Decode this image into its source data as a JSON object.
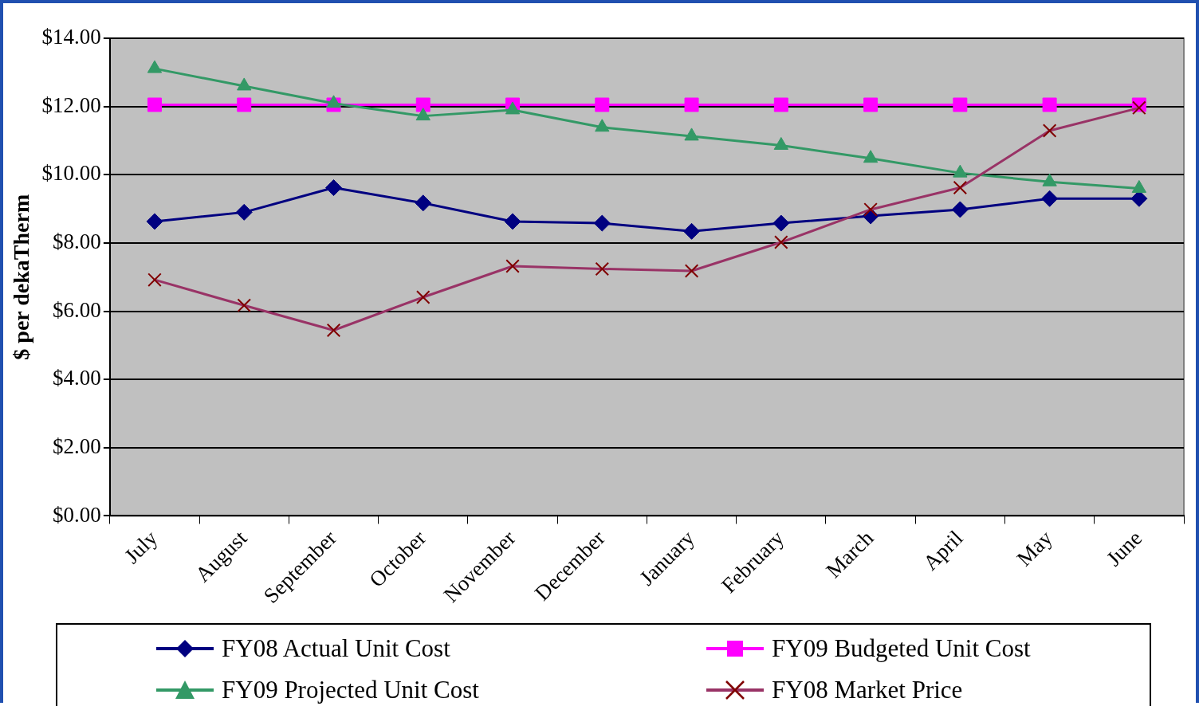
{
  "chart_data": {
    "type": "line",
    "ylabel": "$ per dekaTherm",
    "categories": [
      "July",
      "August",
      "September",
      "October",
      "November",
      "December",
      "January",
      "February",
      "March",
      "April",
      "May",
      "June"
    ],
    "series": [
      {
        "name": "FY08 Actual Unit Cost",
        "color": "#000080",
        "marker": "diamond",
        "values": [
          8.63,
          8.9,
          9.62,
          9.17,
          8.63,
          8.58,
          8.34,
          8.58,
          8.79,
          8.98,
          9.3,
          9.3
        ]
      },
      {
        "name": "FY09 Budgeted Unit Cost",
        "color": "#ff00ff",
        "marker": "square",
        "values": [
          12.05,
          12.05,
          12.05,
          12.05,
          12.05,
          12.05,
          12.05,
          12.05,
          12.05,
          12.05,
          12.05,
          12.05
        ]
      },
      {
        "name": "FY09 Projected Unit Cost",
        "color": "#339966",
        "marker": "triangle",
        "values": [
          13.11,
          12.6,
          12.09,
          11.72,
          11.9,
          11.39,
          11.13,
          10.86,
          10.48,
          10.05,
          9.79,
          9.6
        ]
      },
      {
        "name": "FY08 Market Price",
        "color": "#993366",
        "marker": "cross",
        "values": [
          6.92,
          6.17,
          5.44,
          6.41,
          7.32,
          7.24,
          7.18,
          8.02,
          8.98,
          9.62,
          11.29,
          11.96
        ]
      }
    ],
    "ylim": [
      0,
      14
    ],
    "yticks": [
      {
        "value": 0,
        "label": "$0.00"
      },
      {
        "value": 2,
        "label": "$2.00"
      },
      {
        "value": 4,
        "label": "$4.00"
      },
      {
        "value": 6,
        "label": "$6.00"
      },
      {
        "value": 8,
        "label": "$8.00"
      },
      {
        "value": 10,
        "label": "$10.00"
      },
      {
        "value": 12,
        "label": "$12.00"
      },
      {
        "value": 14,
        "label": "$14.00"
      }
    ],
    "grid": "y",
    "legend": "bottom"
  }
}
